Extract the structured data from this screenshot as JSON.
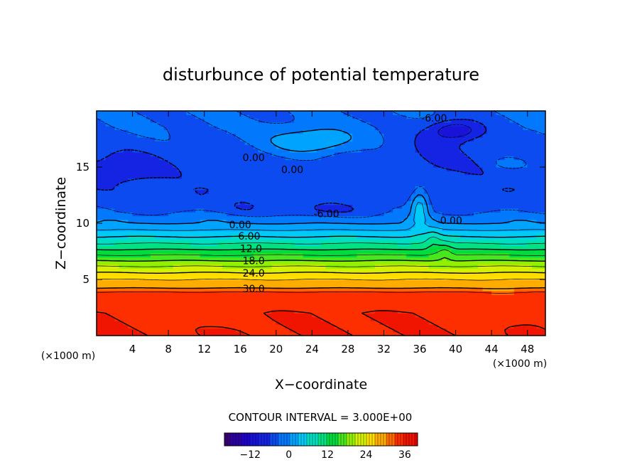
{
  "chart_data": {
    "type": "heatmap",
    "title": "disturbunce of potential temperature",
    "xlabel": "X−coordinate",
    "ylabel": "Z−coordinate",
    "x_unit_left": "(×1000 m)",
    "x_unit_right": "(×1000 m)",
    "xlim": [
      0,
      50
    ],
    "ylim": [
      0,
      20
    ],
    "x_ticks": [
      4,
      8,
      12,
      16,
      20,
      24,
      28,
      32,
      36,
      40,
      44,
      48
    ],
    "y_ticks": [
      5,
      10,
      15
    ],
    "contour_interval_text": "CONTOUR INTERVAL = 3.000E+00",
    "contour_interval": 3,
    "contour_labels": [
      {
        "text": "0.00",
        "x": 17.5,
        "z": 15.8
      },
      {
        "text": "0.00",
        "x": 21.8,
        "z": 14.7
      },
      {
        "text": "-6.00",
        "x": 37.6,
        "z": 19.3
      },
      {
        "text": "-6.00",
        "x": 25.6,
        "z": 10.8
      },
      {
        "text": "0.00",
        "x": 39.5,
        "z": 10.2
      },
      {
        "text": "0.00",
        "x": 16.0,
        "z": 9.8
      },
      {
        "text": "6.00",
        "x": 17.0,
        "z": 8.8
      },
      {
        "text": "12.0",
        "x": 17.2,
        "z": 7.7
      },
      {
        "text": "18.0",
        "x": 17.5,
        "z": 6.6
      },
      {
        "text": "24.0",
        "x": 17.5,
        "z": 5.5
      },
      {
        "text": "30.0",
        "x": 17.5,
        "z": 4.1
      }
    ],
    "colorbar": {
      "min": -20,
      "max": 40,
      "ticks": [
        -12,
        0,
        12,
        24,
        36
      ],
      "tick_labels": [
        "−12",
        "0",
        "12",
        "24",
        "36"
      ]
    },
    "profile": [
      {
        "z": 0.0,
        "value": 36
      },
      {
        "z": 2.0,
        "value": 36
      },
      {
        "z": 3.8,
        "value": 34
      },
      {
        "z": 4.2,
        "value": 30
      },
      {
        "z": 5.0,
        "value": 27
      },
      {
        "z": 6.0,
        "value": 22
      },
      {
        "z": 7.0,
        "value": 16
      },
      {
        "z": 8.0,
        "value": 10
      },
      {
        "z": 9.0,
        "value": 5
      },
      {
        "z": 10.0,
        "value": 0
      },
      {
        "z": 11.0,
        "value": -3
      },
      {
        "z": 13.0,
        "value": -5
      },
      {
        "z": 15.0,
        "value": -5
      },
      {
        "z": 17.0,
        "value": -4
      },
      {
        "z": 18.5,
        "value": -3
      },
      {
        "z": 20.0,
        "value": -3
      }
    ],
    "anomalies": [
      {
        "x": 24,
        "z": 17.3,
        "sx": 5.0,
        "sz": 1.2,
        "amp": 7
      },
      {
        "x": 40,
        "z": 18.3,
        "sx": 3.0,
        "sz": 0.9,
        "amp": -8
      },
      {
        "x": 38,
        "z": 16.5,
        "sx": 4.5,
        "sz": 2.2,
        "amp": -2
      },
      {
        "x": 3,
        "z": 15.0,
        "sx": 4.0,
        "sz": 1.3,
        "amp": -4
      },
      {
        "x": 25,
        "z": 11.2,
        "sx": 6.0,
        "sz": 0.7,
        "amp": -3
      },
      {
        "x": 16.5,
        "z": 11.5,
        "sx": 2.0,
        "sz": 0.6,
        "amp": -2
      },
      {
        "x": 36,
        "z": 11.5,
        "sx": 1.0,
        "sz": 1.7,
        "amp": 8
      },
      {
        "x": 37.5,
        "z": 8.5,
        "sx": 0.8,
        "sz": 1.0,
        "amp": 3
      },
      {
        "x": 38.8,
        "z": 7.5,
        "sx": 0.8,
        "sz": 0.8,
        "amp": 3
      },
      {
        "x": 46,
        "z": 15.3,
        "sx": 2.0,
        "sz": 0.5,
        "amp": 3
      },
      {
        "x": 10,
        "z": 12.0,
        "sx": 3.0,
        "sz": 0.8,
        "amp": -2
      },
      {
        "x": 44,
        "z": 12.0,
        "sx": 3.0,
        "sz": 0.8,
        "amp": -2
      },
      {
        "x": 45,
        "z": 2.5,
        "sx": 3.0,
        "sz": 1.2,
        "amp": -2
      },
      {
        "x": 12,
        "z": 2.0,
        "sx": 4.0,
        "sz": 1.0,
        "amp": -1
      }
    ]
  }
}
